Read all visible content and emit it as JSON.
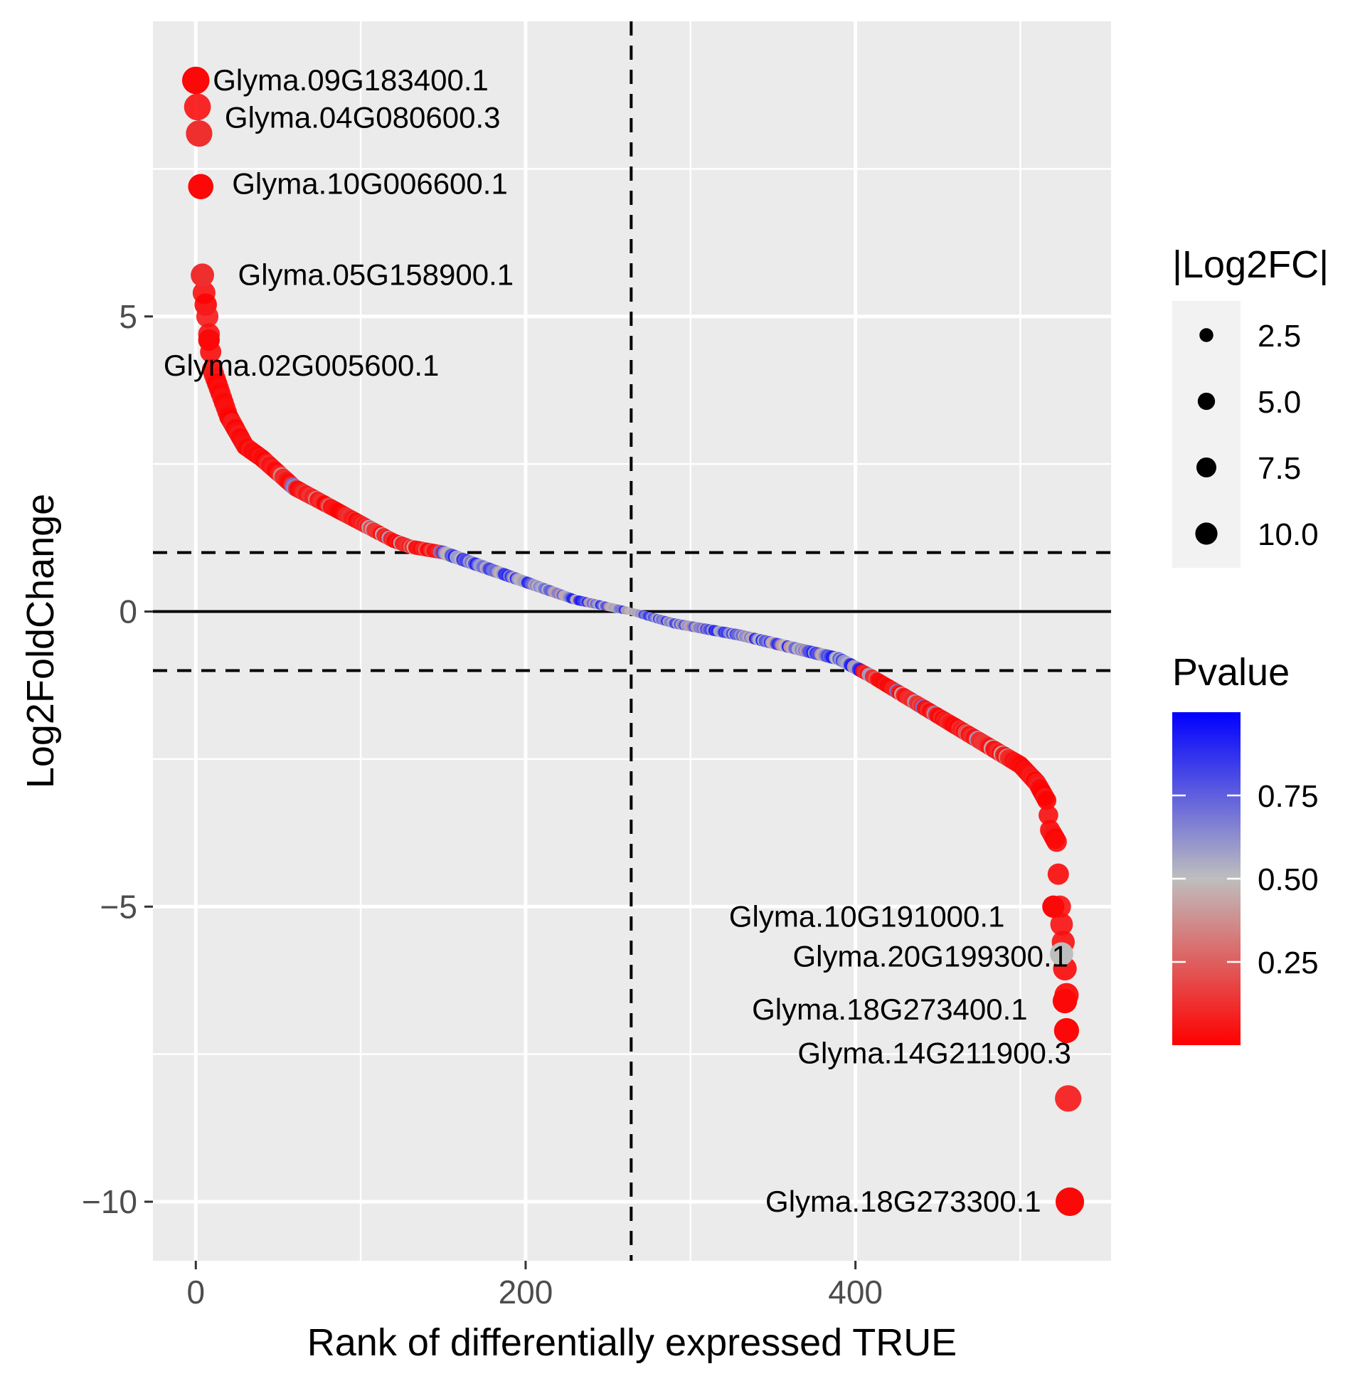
{
  "chart_data": {
    "type": "scatter",
    "xlabel": "Rank of differentially expressed TRUE",
    "ylabel": "Log2FoldChange",
    "xlim": [
      -26,
      555
    ],
    "ylim": [
      -11,
      10
    ],
    "xticks": [
      0,
      200,
      400
    ],
    "xtick_labels": [
      "0",
      "200",
      "400"
    ],
    "yticks": [
      -10,
      -5,
      0,
      5
    ],
    "ytick_labels": [
      "−10",
      "−5",
      "0",
      "5"
    ],
    "grid": true,
    "reference_lines": {
      "vertical_dashed_x": 264,
      "horizontal_dashed_y": [
        1,
        -1
      ],
      "horizontal_solid_y": 0
    },
    "total_points": 530,
    "curve_keypoints": {
      "rank": [
        0,
        2,
        3,
        4,
        5,
        7,
        10,
        15,
        20,
        30,
        40,
        60,
        80,
        100,
        120,
        130,
        150,
        170,
        200,
        230,
        264,
        290,
        330,
        360,
        390,
        410,
        440,
        470,
        500,
        510,
        516,
        518,
        522,
        524,
        526,
        528,
        530
      ],
      "log2fc": [
        9.0,
        8.1,
        7.2,
        5.7,
        5.4,
        5.0,
        4.1,
        3.7,
        3.3,
        2.8,
        2.6,
        2.1,
        1.8,
        1.5,
        1.2,
        1.1,
        1.0,
        0.8,
        0.5,
        0.2,
        0.0,
        -0.2,
        -0.4,
        -0.6,
        -0.8,
        -1.1,
        -1.6,
        -2.1,
        -2.6,
        -2.9,
        -3.2,
        -3.7,
        -3.9,
        -5.0,
        -5.6,
        -6.5,
        -10.0
      ]
    },
    "labeled_points": [
      {
        "label": "Glyma.09G183400.1",
        "x": 0,
        "y": 9.0,
        "anchor": "right"
      },
      {
        "label": "Glyma.04G080600.3",
        "x": 2,
        "y": 8.1,
        "anchor": "right"
      },
      {
        "label": "Glyma.10G006600.1",
        "x": 3,
        "y": 7.2,
        "anchor": "right"
      },
      {
        "label": "Glyma.05G158900.1",
        "x": 4,
        "y": 5.7,
        "anchor": "right"
      },
      {
        "label": "Glyma.02G005600.1",
        "x": 8,
        "y": 4.6,
        "anchor": "right"
      },
      {
        "label": "Glyma.10G191000.1",
        "x": 520,
        "y": -5.0,
        "anchor": "left"
      },
      {
        "label": "Glyma.20G199300.1",
        "x": 525,
        "y": -5.8,
        "anchor": "left"
      },
      {
        "label": "Glyma.18G273400.1",
        "x": 527,
        "y": -6.6,
        "anchor": "left"
      },
      {
        "label": "Glyma.14G211900.3",
        "x": 528,
        "y": -7.1,
        "anchor": "left"
      },
      {
        "label": "Glyma.18G273300.1",
        "x": 530,
        "y": -10.0,
        "anchor": "left"
      }
    ],
    "size_legend": {
      "title": "|Log2FC|",
      "values": [
        2.5,
        5.0,
        7.5,
        10.0
      ],
      "labels": [
        "2.5",
        "5.0",
        "7.5",
        "10.0"
      ]
    },
    "color_legend": {
      "title": "Pvalue",
      "breaks": [
        0.75,
        0.5,
        0.25
      ],
      "labels": [
        "0.75",
        "0.50",
        "0.25"
      ],
      "domain": [
        0.0,
        1.0
      ],
      "low_color": "#ff0000",
      "mid_color": "#bebebe",
      "high_color": "#0000ff"
    },
    "colors": {
      "panel_background": "#ebebeb",
      "grid": "#ffffff",
      "legend_key_background": "#f2f2f2"
    }
  }
}
